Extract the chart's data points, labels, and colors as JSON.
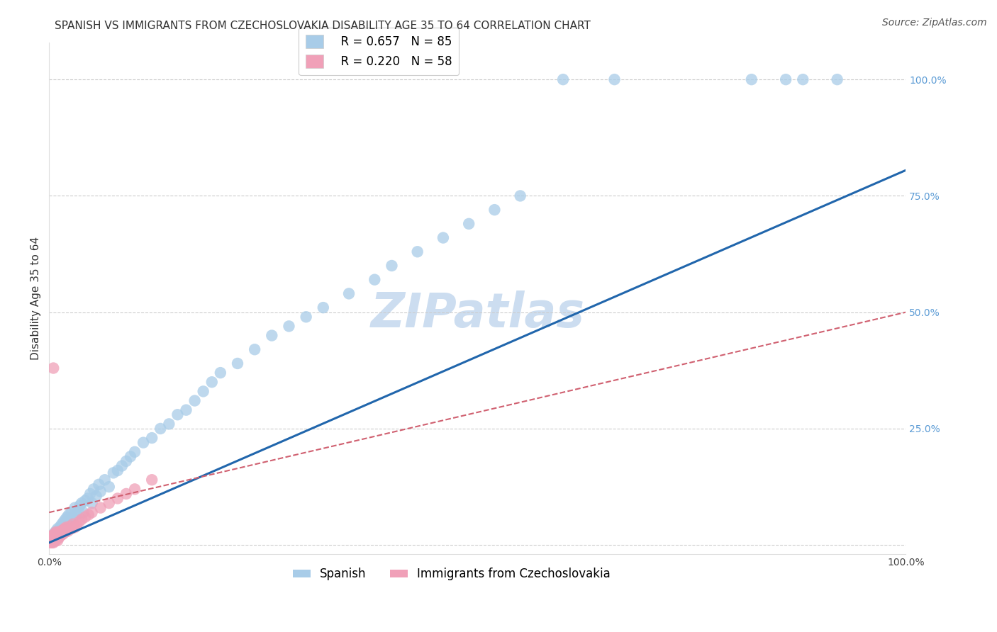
{
  "title": "SPANISH VS IMMIGRANTS FROM CZECHOSLOVAKIA DISABILITY AGE 35 TO 64 CORRELATION CHART",
  "source": "Source: ZipAtlas.com",
  "ylabel": "Disability Age 35 to 64",
  "xlim": [
    0.0,
    1.0
  ],
  "ylim": [
    -0.02,
    1.08
  ],
  "background_color": "#ffffff",
  "grid_color": "#cccccc",
  "watermark_text": "ZIPatlas",
  "watermark_color": "#ccddf0",
  "watermark_fontsize": 48,
  "title_fontsize": 11,
  "axis_label_fontsize": 11,
  "tick_fontsize": 10,
  "legend_fontsize": 12,
  "source_fontsize": 10,
  "right_tick_color": "#5B9BD5",
  "right_ytick_positions": [
    0.0,
    0.25,
    0.5,
    0.75,
    1.0
  ],
  "right_ytick_labels": [
    "",
    "25.0%",
    "50.0%",
    "75.0%",
    "100.0%"
  ],
  "series1_label": "Spanish",
  "series1_R": 0.657,
  "series1_N": 85,
  "series1_color": "#a8cce8",
  "series1_line_color": "#2166AC",
  "series1_x": [
    0.002,
    0.003,
    0.004,
    0.005,
    0.005,
    0.006,
    0.006,
    0.007,
    0.007,
    0.008,
    0.008,
    0.009,
    0.009,
    0.01,
    0.01,
    0.011,
    0.012,
    0.013,
    0.013,
    0.014,
    0.015,
    0.015,
    0.016,
    0.017,
    0.018,
    0.019,
    0.02,
    0.021,
    0.022,
    0.023,
    0.025,
    0.026,
    0.028,
    0.03,
    0.032,
    0.034,
    0.036,
    0.038,
    0.04,
    0.042,
    0.045,
    0.048,
    0.05,
    0.052,
    0.055,
    0.058,
    0.06,
    0.065,
    0.07,
    0.075,
    0.08,
    0.085,
    0.09,
    0.095,
    0.1,
    0.11,
    0.12,
    0.13,
    0.14,
    0.15,
    0.16,
    0.17,
    0.18,
    0.19,
    0.2,
    0.22,
    0.24,
    0.26,
    0.28,
    0.3,
    0.32,
    0.35,
    0.38,
    0.4,
    0.43,
    0.46,
    0.49,
    0.52,
    0.55,
    0.6,
    0.66,
    0.82,
    0.86,
    0.88,
    0.92
  ],
  "series1_y": [
    0.01,
    0.015,
    0.012,
    0.02,
    0.015,
    0.018,
    0.025,
    0.015,
    0.022,
    0.02,
    0.03,
    0.018,
    0.025,
    0.022,
    0.035,
    0.028,
    0.03,
    0.025,
    0.04,
    0.032,
    0.035,
    0.045,
    0.04,
    0.05,
    0.038,
    0.055,
    0.045,
    0.06,
    0.05,
    0.065,
    0.055,
    0.07,
    0.06,
    0.08,
    0.065,
    0.075,
    0.085,
    0.09,
    0.07,
    0.095,
    0.1,
    0.11,
    0.09,
    0.12,
    0.105,
    0.13,
    0.115,
    0.14,
    0.125,
    0.155,
    0.16,
    0.17,
    0.18,
    0.19,
    0.2,
    0.22,
    0.23,
    0.25,
    0.26,
    0.28,
    0.29,
    0.31,
    0.33,
    0.35,
    0.37,
    0.39,
    0.42,
    0.45,
    0.47,
    0.49,
    0.51,
    0.54,
    0.57,
    0.6,
    0.63,
    0.66,
    0.69,
    0.72,
    0.75,
    1.0,
    1.0,
    1.0,
    1.0,
    1.0,
    1.0
  ],
  "series1_line_x0": 0.0,
  "series1_line_y0": 0.005,
  "series1_line_x1": 1.0,
  "series1_line_y1": 0.805,
  "series2_label": "Immigrants from Czechoslovakia",
  "series2_R": 0.22,
  "series2_N": 58,
  "series2_color": "#f0a0b8",
  "series2_line_color": "#d06070",
  "series2_x": [
    0.001,
    0.001,
    0.002,
    0.002,
    0.002,
    0.003,
    0.003,
    0.003,
    0.003,
    0.004,
    0.004,
    0.004,
    0.005,
    0.005,
    0.005,
    0.006,
    0.006,
    0.006,
    0.007,
    0.007,
    0.007,
    0.008,
    0.008,
    0.008,
    0.009,
    0.009,
    0.01,
    0.01,
    0.011,
    0.011,
    0.012,
    0.012,
    0.013,
    0.014,
    0.015,
    0.016,
    0.017,
    0.018,
    0.019,
    0.02,
    0.022,
    0.024,
    0.026,
    0.028,
    0.03,
    0.032,
    0.035,
    0.038,
    0.042,
    0.046,
    0.05,
    0.06,
    0.07,
    0.08,
    0.09,
    0.1,
    0.12,
    0.005
  ],
  "series2_y": [
    0.005,
    0.01,
    0.008,
    0.012,
    0.015,
    0.005,
    0.01,
    0.015,
    0.02,
    0.008,
    0.015,
    0.02,
    0.005,
    0.012,
    0.018,
    0.01,
    0.015,
    0.022,
    0.008,
    0.018,
    0.025,
    0.012,
    0.02,
    0.028,
    0.015,
    0.022,
    0.01,
    0.02,
    0.015,
    0.025,
    0.018,
    0.028,
    0.02,
    0.03,
    0.022,
    0.032,
    0.025,
    0.035,
    0.028,
    0.038,
    0.03,
    0.04,
    0.035,
    0.045,
    0.038,
    0.042,
    0.05,
    0.055,
    0.06,
    0.065,
    0.07,
    0.08,
    0.09,
    0.1,
    0.11,
    0.12,
    0.14,
    0.38
  ],
  "series2_line_x0": 0.0,
  "series2_line_y0": 0.07,
  "series2_line_x1": 1.0,
  "series2_line_y1": 0.5
}
